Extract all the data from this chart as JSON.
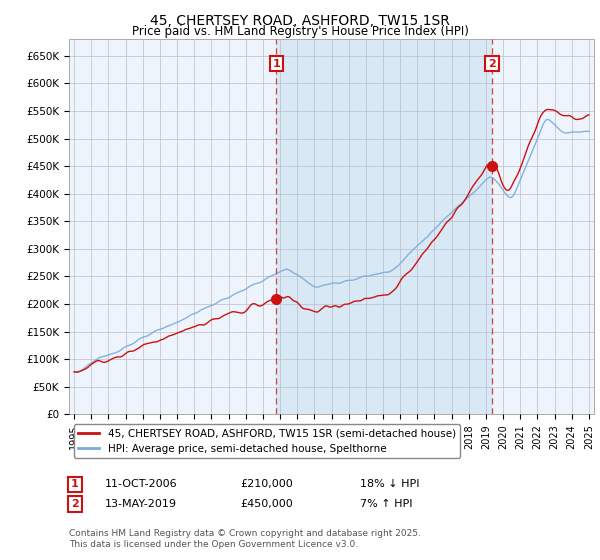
{
  "title": "45, CHERTSEY ROAD, ASHFORD, TW15 1SR",
  "subtitle": "Price paid vs. HM Land Registry's House Price Index (HPI)",
  "ylim": [
    0,
    680000
  ],
  "yticks": [
    0,
    50000,
    100000,
    150000,
    200000,
    250000,
    300000,
    350000,
    400000,
    450000,
    500000,
    550000,
    600000,
    650000
  ],
  "xlim_start": 1994.7,
  "xlim_end": 2025.3,
  "background_color": "#ffffff",
  "plot_bg_color": "#eef4fb",
  "grid_color": "#bbbbcc",
  "hpi_color": "#7aaadd",
  "price_color": "#cc1111",
  "sale1_x": 2006.78,
  "sale1_y": 210000,
  "sale1_label": "1",
  "sale1_date": "11-OCT-2006",
  "sale1_price": "£210,000",
  "sale1_hpi": "18% ↓ HPI",
  "sale2_x": 2019.36,
  "sale2_y": 450000,
  "sale2_label": "2",
  "sale2_date": "13-MAY-2019",
  "sale2_price": "£450,000",
  "sale2_hpi": "7% ↑ HPI",
  "legend_line1": "45, CHERTSEY ROAD, ASHFORD, TW15 1SR (semi-detached house)",
  "legend_line2": "HPI: Average price, semi-detached house, Spelthorne",
  "footnote": "Contains HM Land Registry data © Crown copyright and database right 2025.\nThis data is licensed under the Open Government Licence v3.0.",
  "vline_color": "#cc4444",
  "marker_box_color": "#cc1111",
  "shade_color": "#d8e8f5"
}
